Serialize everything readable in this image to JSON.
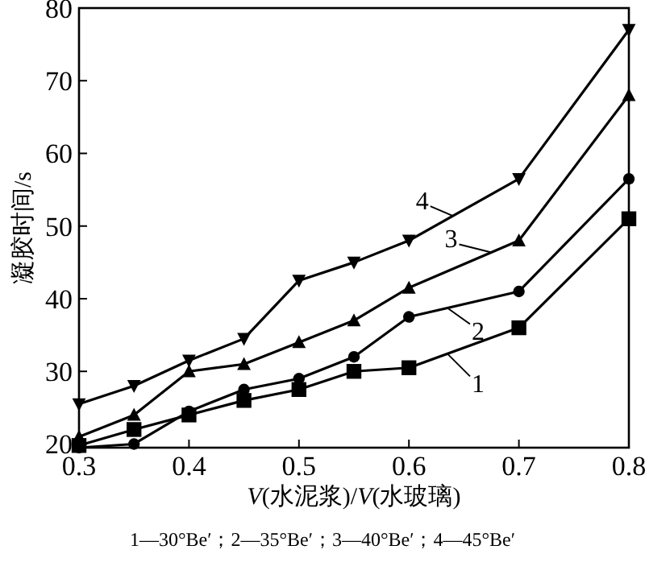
{
  "chart_data": {
    "type": "line",
    "xlabel": "*V*(水泥浆)/*V*(水玻璃)",
    "ylabel": "凝胶时间/s",
    "x": [
      0.3,
      0.35,
      0.4,
      0.45,
      0.5,
      0.55,
      0.6,
      0.7,
      0.8
    ],
    "series": [
      {
        "name": "1",
        "color": "#000000",
        "marker": "square",
        "values": [
          19.8,
          22,
          24,
          26,
          27.5,
          30,
          30.5,
          36,
          51
        ]
      },
      {
        "name": "2",
        "color": "#000000",
        "marker": "circle",
        "values": [
          19.5,
          20,
          24.5,
          27.5,
          29,
          32,
          37.5,
          41,
          56.5
        ]
      },
      {
        "name": "3",
        "color": "#000000",
        "marker": "triangle",
        "values": [
          21,
          24,
          30,
          31,
          34,
          37,
          41.5,
          48,
          68
        ]
      },
      {
        "name": "4",
        "color": "#000000",
        "marker": "triangle-down",
        "values": [
          25.5,
          28,
          31.5,
          34.5,
          42.5,
          45,
          48,
          56.5,
          77
        ]
      }
    ],
    "xlim": [
      0.3,
      0.8
    ],
    "ylim": [
      19.5,
      80
    ],
    "xticks": [
      0.3,
      0.4,
      0.5,
      0.6,
      0.7,
      0.8
    ],
    "yticks": [
      20,
      30,
      40,
      50,
      60,
      70,
      80
    ],
    "grid": false,
    "legend": "right",
    "line_style": "solid",
    "annotations": [
      "1—30°Be′；2—35°Be′；3—40°Be′；4—45°Be′"
    ]
  }
}
